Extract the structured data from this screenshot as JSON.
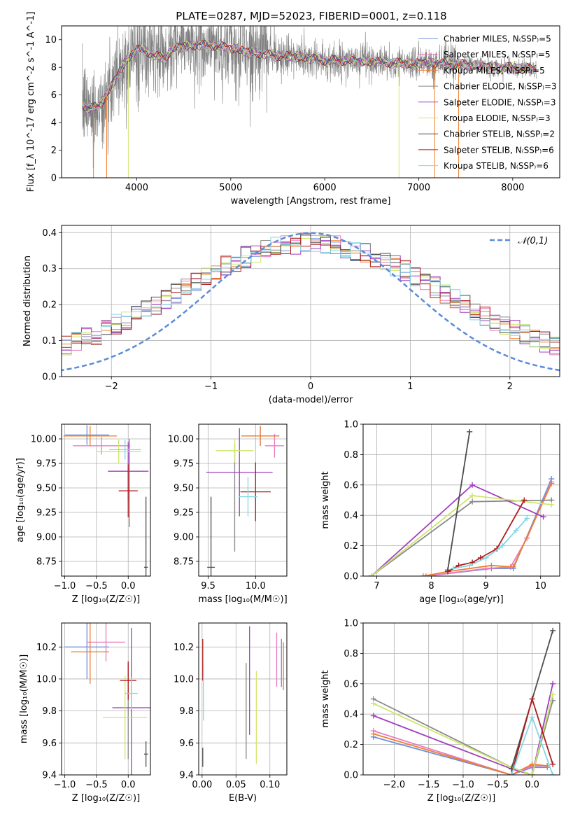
{
  "figure": {
    "title": "PLATE=0287, MJD=52023, FIBERID=0001, z=0.118"
  },
  "legend_labels": {
    "spectrum": [
      "Chabrier MILES, N_SSP=5",
      "Salpeter MILES, N_SSP=5",
      "Kroupa MILES, N_SSP=5",
      "Chabrier ELODIE, N_SSP=3",
      "Salpeter ELODIE, N_SSP=3",
      "Kroupa ELODIE, N_SSP=3",
      "Chabrier STELIB, N_SSP=2",
      "Salpeter STELIB, N_SSP=6",
      "Kroupa STELIB, N_SSP=6"
    ],
    "hist": "𝒩(0,1)"
  },
  "colors": {
    "series": [
      "#6e8fdb",
      "#e87cbf",
      "#f07f2d",
      "#8a8a8a",
      "#a23fbf",
      "#cde66a",
      "#4d4d4d",
      "#b01c1c",
      "#7fd8e6"
    ],
    "spectrum_data": "#808080",
    "gaussian": "#5b8bd9",
    "grid": "#b0b0b0"
  },
  "chart_data": [
    {
      "type": "line",
      "title": "PLATE=0287, MJD=52023, FIBERID=0001, z=0.118",
      "xlabel": "wavelength [Angstrom, rest frame]",
      "ylabel": "Flux [f_λ 10^-17 erg cm^-2 s^-1 A^-1]",
      "xlim": [
        3200,
        8500
      ],
      "ylim": [
        0,
        11
      ],
      "xticks": [
        4000,
        5000,
        6000,
        7000,
        8000
      ],
      "yticks": [
        0,
        2,
        4,
        6,
        8,
        10
      ],
      "grid": false,
      "legend": "upper right",
      "continuum": {
        "x": [
          3420,
          3500,
          3600,
          3700,
          3800,
          3900,
          4000,
          4100,
          4200,
          4300,
          4400,
          4600,
          4800,
          5000,
          5200,
          5400,
          5600,
          5800,
          6000,
          6200,
          6400,
          6600,
          6800,
          7000,
          7200,
          7500,
          7800,
          8000,
          8250
        ],
        "y": [
          5.3,
          5.0,
          5.2,
          6.2,
          7.5,
          8.6,
          9.3,
          9.2,
          8.8,
          8.7,
          9.4,
          9.6,
          9.6,
          9.4,
          9.1,
          8.9,
          8.8,
          8.7,
          8.5,
          8.5,
          8.4,
          8.4,
          8.3,
          8.3,
          8.3,
          8.2,
          8.0,
          8.0,
          7.9
        ]
      }
    },
    {
      "type": "histogram",
      "xlabel": "(data-model)/error",
      "ylabel": "Normed distribution",
      "xlim": [
        -2.5,
        2.5
      ],
      "ylim": [
        0,
        0.42
      ],
      "xticks": [
        -2,
        -1,
        0,
        1,
        2
      ],
      "yticks": [
        0.0,
        0.1,
        0.2,
        0.3,
        0.4
      ],
      "grid": true,
      "legend": "upper right",
      "reference": "N(0,1)"
    },
    {
      "type": "scatter",
      "xlabel": "Z [log10(Z/Z☉)]",
      "ylabel": "age [log10(age/yr)]",
      "xlim": [
        -1.05,
        0.35
      ],
      "ylim": [
        8.6,
        10.15
      ],
      "xticks": [
        -1.0,
        -0.5,
        0.0
      ],
      "yticks": [
        8.75,
        9.0,
        9.25,
        9.5,
        9.75,
        10.0
      ],
      "grid": true,
      "points": [
        {
          "c": 0,
          "x": -0.65,
          "xe": 0.35,
          "y": 10.04,
          "ye": 0.1
        },
        {
          "c": 1,
          "x": -0.42,
          "xe": 0.45,
          "y": 9.93,
          "ye": 0.09
        },
        {
          "c": 2,
          "x": -0.6,
          "xe": 0.42,
          "y": 10.03,
          "ye": 0.1
        },
        {
          "c": 3,
          "x": 0.02,
          "xe": 0.0,
          "y": 9.55,
          "ye": 0.45
        },
        {
          "c": 4,
          "x": 0.0,
          "xe": 0.32,
          "y": 9.67,
          "ye": 0.3
        },
        {
          "c": 5,
          "x": -0.15,
          "xe": 0.35,
          "y": 9.87,
          "ye": 0.12
        },
        {
          "c": 6,
          "x": 0.28,
          "xe": 0.03,
          "y": 8.69,
          "ye": 0.72
        },
        {
          "c": 7,
          "x": 0.0,
          "xe": 0.15,
          "y": 9.47,
          "ye": 0.27
        },
        {
          "c": 8,
          "x": -0.05,
          "xe": 0.25,
          "y": 9.89,
          "ye": 0.1
        }
      ]
    },
    {
      "type": "scatter",
      "xlabel": "mass [log10(M/M☉)]",
      "ylabel": "",
      "xlim": [
        9.4,
        10.33
      ],
      "ylim": [
        8.6,
        10.15
      ],
      "xticks": [
        9.5,
        10.0
      ],
      "yticks": [
        8.75,
        9.0,
        9.25,
        9.5,
        9.75,
        10.0
      ],
      "grid": true,
      "points": [
        {
          "c": 0,
          "x": 10.05,
          "xe": 0.2,
          "y": 10.03,
          "ye": 0.1
        },
        {
          "c": 1,
          "x": 10.2,
          "xe": 0.1,
          "y": 9.93,
          "ye": 0.12
        },
        {
          "c": 2,
          "x": 10.05,
          "xe": 0.2,
          "y": 10.03,
          "ye": 0.1
        },
        {
          "c": 3,
          "x": 9.78,
          "xe": 0.0,
          "y": 9.4,
          "ye": 0.55
        },
        {
          "c": 4,
          "x": 9.83,
          "xe": 0.35,
          "y": 9.66,
          "ye": 0.45
        },
        {
          "c": 5,
          "x": 9.78,
          "xe": 0.2,
          "y": 9.88,
          "ye": 0.12
        },
        {
          "c": 6,
          "x": 9.53,
          "xe": 0.04,
          "y": 8.69,
          "ye": 0.72
        },
        {
          "c": 7,
          "x": 10.0,
          "xe": 0.16,
          "y": 9.46,
          "ye": 0.3
        },
        {
          "c": 8,
          "x": 9.92,
          "xe": 0.1,
          "y": 9.41,
          "ye": 0.2
        }
      ]
    },
    {
      "type": "line",
      "xlabel": "age [log10(age/yr)]",
      "ylabel": "mass weight",
      "xlim": [
        6.75,
        10.35
      ],
      "ylim": [
        0,
        1.0
      ],
      "xticks": [
        7,
        8,
        9,
        10
      ],
      "yticks": [
        0.0,
        0.2,
        0.4,
        0.6,
        0.8,
        1.0
      ],
      "grid": true,
      "series": [
        {
          "c": 0,
          "x": [
            7.9,
            9.1,
            9.5,
            10.2
          ],
          "y": [
            0.0,
            0.05,
            0.05,
            0.64
          ]
        },
        {
          "c": 1,
          "x": [
            7.9,
            9.0,
            9.45,
            9.75,
            10.2
          ],
          "y": [
            0.0,
            0.05,
            0.06,
            0.25,
            0.62
          ]
        },
        {
          "c": 2,
          "x": [
            7.85,
            8.3,
            9.1,
            9.5,
            10.2
          ],
          "y": [
            0.0,
            0.03,
            0.07,
            0.06,
            0.61
          ]
        },
        {
          "c": 3,
          "x": [
            6.9,
            8.75,
            10.2
          ],
          "y": [
            0.0,
            0.49,
            0.5
          ]
        },
        {
          "c": 4,
          "x": [
            6.9,
            8.75,
            10.05
          ],
          "y": [
            0.0,
            0.6,
            0.39
          ]
        },
        {
          "c": 5,
          "x": [
            6.9,
            8.75,
            10.2
          ],
          "y": [
            0.0,
            0.53,
            0.47
          ]
        },
        {
          "c": 6,
          "x": [
            8.3,
            8.7
          ],
          "y": [
            0.04,
            0.95
          ]
        },
        {
          "c": 7,
          "x": [
            8.3,
            8.5,
            8.75,
            8.9,
            9.2,
            9.7
          ],
          "y": [
            0.03,
            0.07,
            0.09,
            0.12,
            0.18,
            0.5
          ]
        },
        {
          "c": 8,
          "x": [
            8.4,
            8.7,
            9.0,
            9.3,
            9.55,
            9.75
          ],
          "y": [
            0.05,
            0.07,
            0.12,
            0.2,
            0.3,
            0.38
          ]
        }
      ]
    },
    {
      "type": "scatter",
      "xlabel": "Z [log10(Z/Z☉)]",
      "ylabel": "mass [log10(M/M☉)]",
      "xlim": [
        -1.05,
        0.35
      ],
      "ylim": [
        9.4,
        10.35
      ],
      "xticks": [
        -1.0,
        -0.5,
        0.0
      ],
      "yticks": [
        9.4,
        9.6,
        9.8,
        10.0,
        10.2
      ],
      "grid": true,
      "points": [
        {
          "c": 0,
          "x": -0.65,
          "xe": 0.35,
          "y": 10.2,
          "ye": 0.2
        },
        {
          "c": 1,
          "x": -0.35,
          "xe": 0.3,
          "y": 10.23,
          "ye": 0.12
        },
        {
          "c": 2,
          "x": -0.6,
          "xe": 0.3,
          "y": 10.17,
          "ye": 0.2
        },
        {
          "c": 3,
          "x": 0.0,
          "xe": 0.0,
          "y": 9.8,
          "ye": 0.3
        },
        {
          "c": 4,
          "x": 0.05,
          "xe": 0.3,
          "y": 9.82,
          "ye": 0.5
        },
        {
          "c": 5,
          "x": -0.05,
          "xe": 0.35,
          "y": 9.76,
          "ye": 0.26
        },
        {
          "c": 6,
          "x": 0.28,
          "xe": 0.03,
          "y": 9.53,
          "ye": 0.08
        },
        {
          "c": 7,
          "x": 0.0,
          "xe": 0.13,
          "y": 9.99,
          "ye": 0.12
        },
        {
          "c": 8,
          "x": 0.05,
          "xe": 0.1,
          "y": 9.91,
          "ye": 0.1
        }
      ]
    },
    {
      "type": "scatter",
      "xlabel": "E(B-V)",
      "ylabel": "",
      "xlim": [
        -0.005,
        0.125
      ],
      "ylim": [
        9.4,
        10.35
      ],
      "xticks": [
        0.0,
        0.05,
        0.1
      ],
      "yticks": [
        9.4,
        9.6,
        9.8,
        10.0,
        10.2
      ],
      "grid": true,
      "points": [
        {
          "c": 0,
          "x": 0.117,
          "xe": 0,
          "y": 10.1,
          "ye": 0.15
        },
        {
          "c": 1,
          "x": 0.11,
          "xe": 0,
          "y": 10.12,
          "ye": 0.17
        },
        {
          "c": 2,
          "x": 0.12,
          "xe": 0,
          "y": 10.08,
          "ye": 0.15
        },
        {
          "c": 3,
          "x": 0.065,
          "xe": 0,
          "y": 9.8,
          "ye": 0.3
        },
        {
          "c": 4,
          "x": 0.07,
          "xe": 0,
          "y": 9.99,
          "ye": 0.34
        },
        {
          "c": 5,
          "x": 0.08,
          "xe": 0,
          "y": 9.76,
          "ye": 0.29
        },
        {
          "c": 6,
          "x": 0.001,
          "xe": 0,
          "y": 9.51,
          "ye": 0.06
        },
        {
          "c": 7,
          "x": 0.001,
          "xe": 0,
          "y": 10.12,
          "ye": 0.13
        },
        {
          "c": 8,
          "x": 0.002,
          "xe": 0,
          "y": 9.92,
          "ye": 0.18
        }
      ]
    },
    {
      "type": "line",
      "xlabel": "Z [log10(Z/Z☉)]",
      "ylabel": "mass weight",
      "xlim": [
        -2.45,
        0.4
      ],
      "ylim": [
        0,
        1.0
      ],
      "xticks": [
        -2.0,
        -1.5,
        -1.0,
        -0.5,
        0.0
      ],
      "yticks": [
        0.0,
        0.2,
        0.4,
        0.6,
        0.8,
        1.0
      ],
      "grid": true,
      "series": [
        {
          "c": 0,
          "x": [
            -2.3,
            -0.3,
            0.0,
            0.22
          ],
          "y": [
            0.25,
            0.0,
            0.05,
            0.05
          ]
        },
        {
          "c": 1,
          "x": [
            -2.3,
            -0.3,
            0.0,
            0.22
          ],
          "y": [
            0.29,
            0.0,
            0.06,
            0.06
          ]
        },
        {
          "c": 2,
          "x": [
            -2.3,
            -0.3,
            0.0,
            0.22
          ],
          "y": [
            0.27,
            0.0,
            0.07,
            0.06
          ]
        },
        {
          "c": 3,
          "x": [
            -2.3,
            -0.3,
            0.0,
            0.3
          ],
          "y": [
            0.5,
            0.05,
            0.0,
            0.49
          ]
        },
        {
          "c": 4,
          "x": [
            -2.3,
            -0.3,
            0.0,
            0.3
          ],
          "y": [
            0.39,
            0.04,
            0.0,
            0.6
          ]
        },
        {
          "c": 5,
          "x": [
            -2.3,
            -0.3,
            0.0,
            0.3
          ],
          "y": [
            0.47,
            0.05,
            0.0,
            0.53
          ]
        },
        {
          "c": 6,
          "x": [
            -0.3,
            0.3
          ],
          "y": [
            0.04,
            0.95
          ]
        },
        {
          "c": 7,
          "x": [
            -0.3,
            0.0,
            0.3
          ],
          "y": [
            0.0,
            0.5,
            0.07
          ]
        },
        {
          "c": 8,
          "x": [
            -0.3,
            0.0,
            0.3
          ],
          "y": [
            0.0,
            0.38,
            0.0
          ]
        }
      ]
    }
  ]
}
